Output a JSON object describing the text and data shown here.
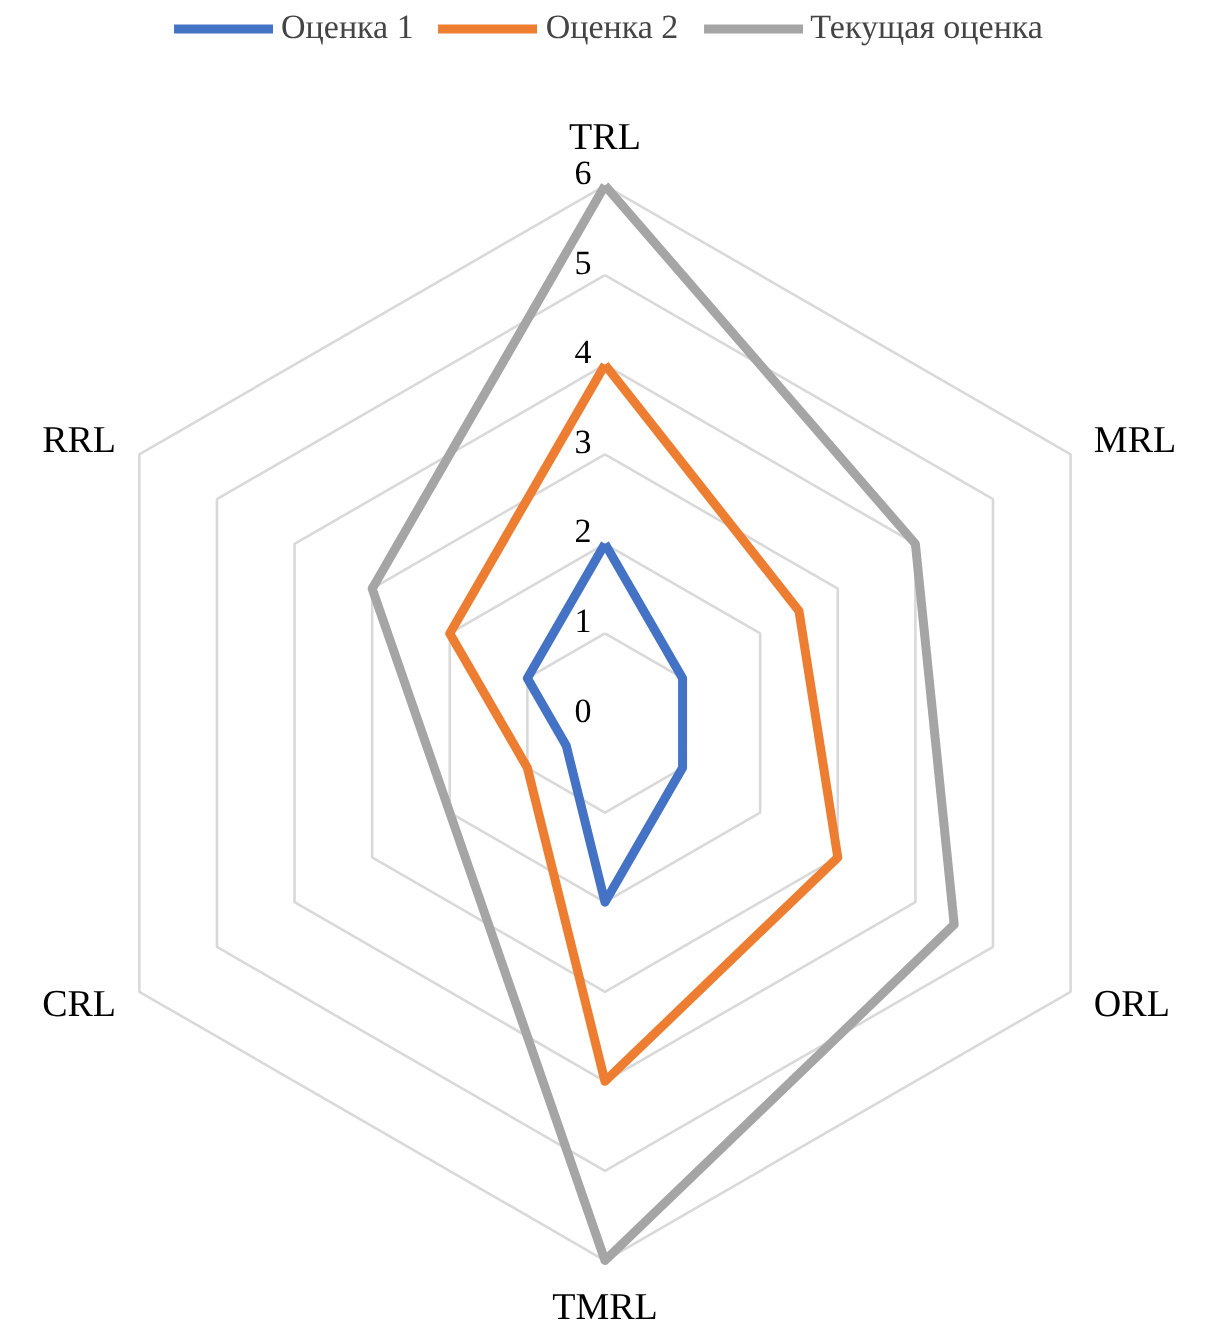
{
  "chart_data": {
    "type": "radar",
    "categories": [
      "TRL",
      "MRL",
      "ORL",
      "TMRL",
      "CRL",
      "RRL"
    ],
    "series": [
      {
        "name": "Оценка 1",
        "color": "#4472c4",
        "values": [
          2,
          1,
          1,
          2,
          0.5,
          1
        ]
      },
      {
        "name": "Оценка 2",
        "color": "#ed7d31",
        "values": [
          4,
          2.5,
          3,
          4,
          1,
          2
        ]
      },
      {
        "name": "Текущая оценка",
        "color": "#a5a5a5",
        "values": [
          6,
          4,
          4.5,
          6,
          2,
          3
        ]
      }
    ],
    "ylim": [
      0,
      6
    ],
    "yticks": [
      0,
      1,
      2,
      3,
      4,
      5,
      6
    ],
    "grid": true,
    "legend": "top"
  }
}
